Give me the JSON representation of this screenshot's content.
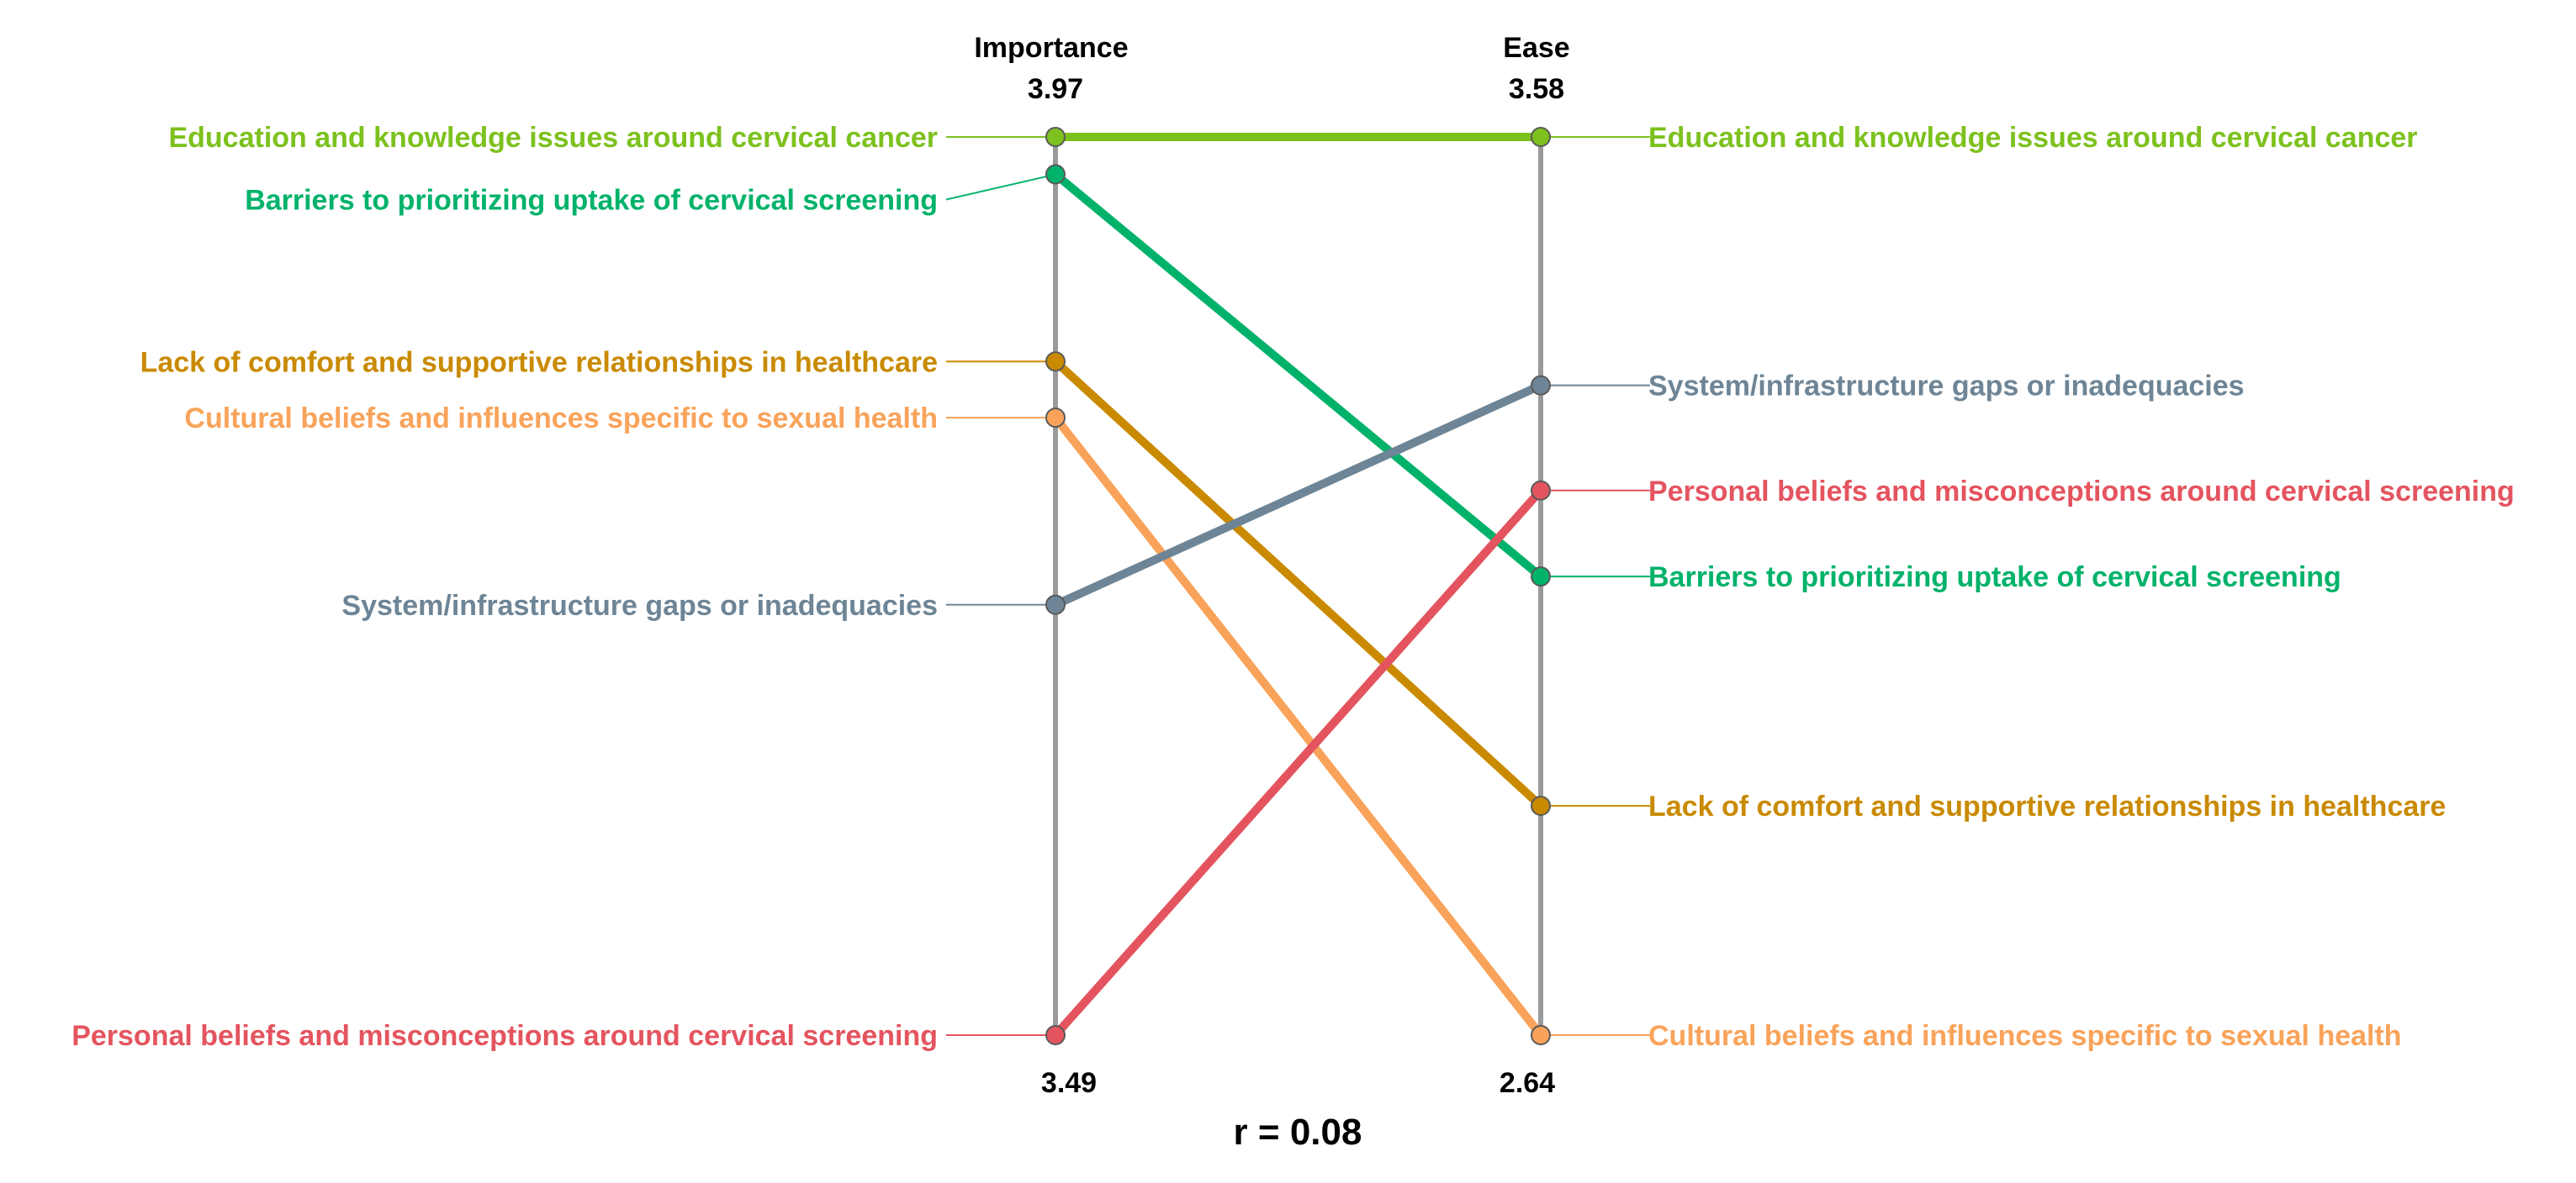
{
  "chart_data": {
    "type": "line",
    "subtype": "slope",
    "axes": [
      {
        "name": "Importance",
        "max_label": "3.97",
        "min_label": "3.49",
        "max": 3.97,
        "min": 3.49
      },
      {
        "name": "Ease",
        "max_label": "3.58",
        "min_label": "2.64",
        "max": 3.58,
        "min": 2.64
      }
    ],
    "series": [
      {
        "name": "Education and knowledge issues around cervical cancer",
        "importance": 3.97,
        "ease": 3.58,
        "color": "#7DC11E"
      },
      {
        "name": "Barriers to prioritizing uptake of cervical screening",
        "importance": 3.95,
        "ease": 3.12,
        "color": "#00B26A"
      },
      {
        "name": "Lack of comfort and supportive relationships in healthcare",
        "importance": 3.85,
        "ease": 2.88,
        "color": "#C98A00"
      },
      {
        "name": "Cultural beliefs and influences specific to sexual health",
        "importance": 3.82,
        "ease": 2.64,
        "color": "#F9A35A"
      },
      {
        "name": "System/infrastructure gaps or inadequacies",
        "importance": 3.72,
        "ease": 3.32,
        "color": "#6D8596"
      },
      {
        "name": "Personal beliefs and misconceptions around cervical screening",
        "importance": 3.49,
        "ease": 3.21,
        "color": "#E4545F"
      }
    ],
    "annotation": "r = 0.08",
    "axis_color": "#9A9A9A"
  }
}
